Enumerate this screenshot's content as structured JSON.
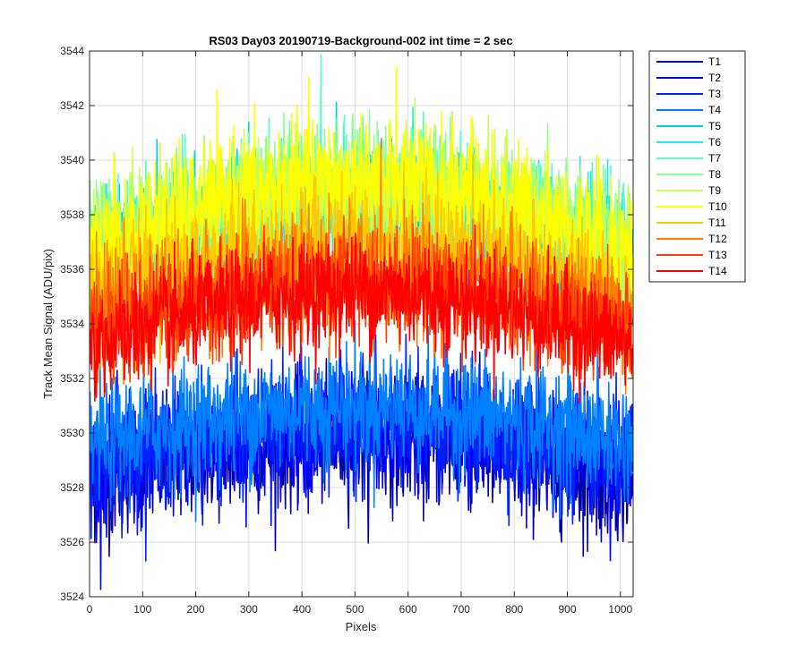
{
  "chart_data": {
    "type": "line",
    "title": "RS03 Day03 20190719-Background-002 int time = 2 sec",
    "xlabel": "Pixels",
    "ylabel": "Track Mean Signal (ADU/pix)",
    "xlim": [
      0,
      1024
    ],
    "ylim": [
      3524,
      3544
    ],
    "xticks": [
      0,
      100,
      200,
      300,
      400,
      500,
      600,
      700,
      800,
      900,
      1000
    ],
    "yticks": [
      3524,
      3526,
      3528,
      3530,
      3532,
      3534,
      3536,
      3538,
      3540,
      3542,
      3544
    ],
    "grid": true,
    "legend_position": "outside-top-right",
    "n_points": 1024,
    "series": [
      {
        "name": "T1",
        "color": "#0000aa",
        "edge": 3528.2,
        "center": 3529.7,
        "noise": 1.1
      },
      {
        "name": "T2",
        "color": "#0000ff",
        "edge": 3528.6,
        "center": 3530.0,
        "noise": 1.1
      },
      {
        "name": "T3",
        "color": "#0022ff",
        "edge": 3529.0,
        "center": 3530.4,
        "noise": 1.1
      },
      {
        "name": "T4",
        "color": "#0080ff",
        "edge": 3529.6,
        "center": 3531.0,
        "noise": 1.1
      },
      {
        "name": "T5",
        "color": "#00c8ff",
        "edge": 3536.0,
        "center": 3538.2,
        "noise": 1.1
      },
      {
        "name": "T6",
        "color": "#22e8ff",
        "edge": 3536.2,
        "center": 3538.4,
        "noise": 1.1
      },
      {
        "name": "T7",
        "color": "#55ffc8",
        "edge": 3536.4,
        "center": 3538.8,
        "noise": 1.2
      },
      {
        "name": "T8",
        "color": "#90ff90",
        "edge": 3536.5,
        "center": 3539.0,
        "noise": 1.2
      },
      {
        "name": "T9",
        "color": "#c8ff55",
        "edge": 3536.5,
        "center": 3539.0,
        "noise": 1.2
      },
      {
        "name": "T10",
        "color": "#ffff00",
        "edge": 3536.5,
        "center": 3539.2,
        "noise": 1.2
      },
      {
        "name": "T11",
        "color": "#ffc800",
        "edge": 3535.0,
        "center": 3537.0,
        "noise": 1.1
      },
      {
        "name": "T12",
        "color": "#ff8000",
        "edge": 3534.0,
        "center": 3536.0,
        "noise": 1.1
      },
      {
        "name": "T13",
        "color": "#ff4000",
        "edge": 3533.6,
        "center": 3535.5,
        "noise": 1.0
      },
      {
        "name": "T14",
        "color": "#ff0000",
        "edge": 3533.2,
        "center": 3535.2,
        "noise": 1.0
      }
    ]
  }
}
